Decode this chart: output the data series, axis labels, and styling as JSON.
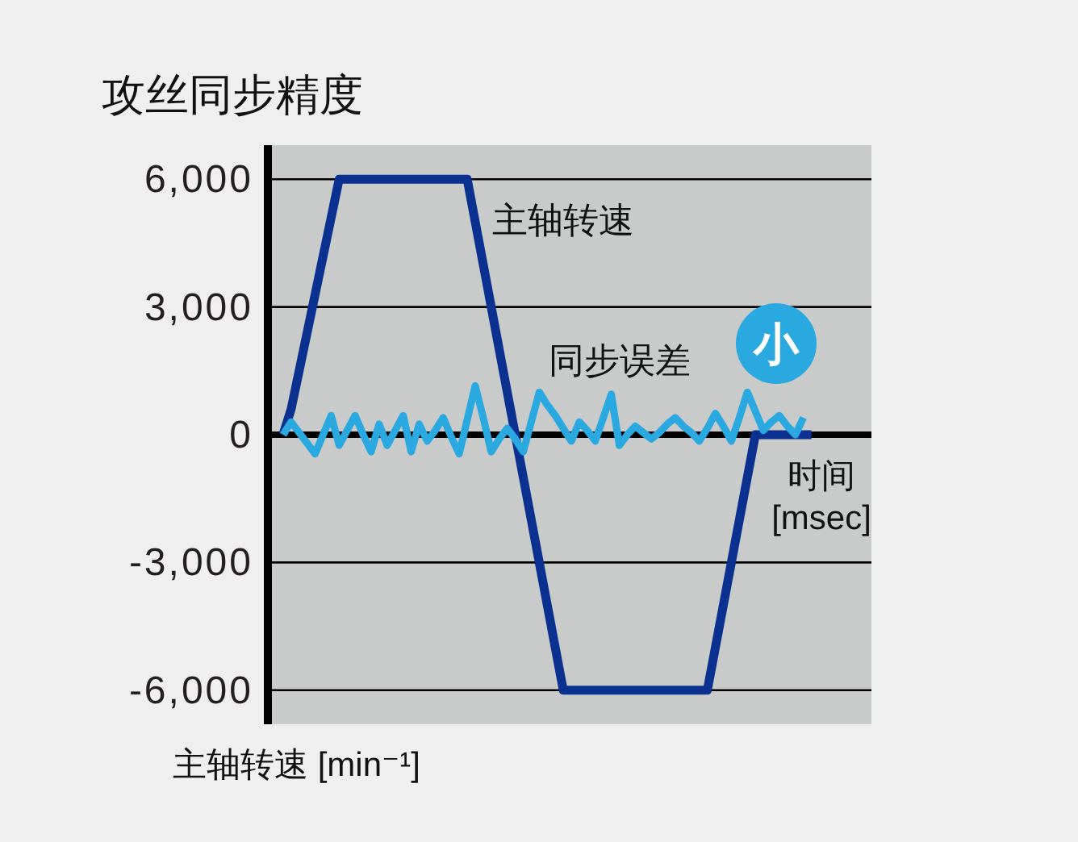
{
  "chart_data": {
    "type": "line",
    "title": "攻丝同步精度",
    "xlabel": "时间\n[msec]",
    "ylabel": "主轴转速 [min⁻¹]",
    "categories": [
      null,
      null,
      null,
      null,
      null,
      null,
      null,
      null,
      null,
      null,
      null,
      null,
      null,
      null,
      null,
      null,
      null,
      null,
      null,
      null,
      null,
      null,
      null,
      null,
      null,
      null,
      null,
      null,
      null,
      null,
      null,
      null,
      null,
      null,
      null,
      null,
      null,
      null,
      null,
      null,
      null,
      null,
      null,
      null,
      null,
      null,
      null,
      null,
      null,
      null,
      null,
      null,
      null,
      null,
      null,
      null,
      null,
      null,
      null,
      null,
      null,
      null,
      null,
      null,
      null,
      null,
      null,
      null,
      null,
      null,
      null,
      null,
      null,
      null,
      null
    ],
    "series": [
      {
        "name": "主轴转速",
        "color": "#0b3190",
        "values": [
          null,
          0,
          600,
          1500,
          2400,
          3300,
          4200,
          5100,
          6000,
          6000,
          6000,
          6000,
          6000,
          6000,
          6000,
          6000,
          6000,
          6000,
          6000,
          6000,
          6000,
          6000,
          6000,
          6000,
          6000,
          5000,
          4000,
          3000,
          2000,
          1000,
          0,
          -1000,
          -2000,
          -3000,
          -4000,
          -5000,
          -6000,
          -6000,
          -6000,
          -6000,
          -6000,
          -6000,
          -6000,
          -6000,
          -6000,
          -6000,
          -6000,
          -6000,
          -6000,
          -6000,
          -6000,
          -6000,
          -6000,
          -6000,
          -6000,
          -5000,
          -4000,
          -3000,
          -2000,
          -1000,
          0,
          0,
          0,
          0,
          0,
          0,
          0,
          0,
          null,
          null,
          null,
          null,
          null,
          null,
          null
        ]
      },
      {
        "name": "同步误差",
        "color": "#2aa8e0",
        "values": [
          null,
          0,
          300,
          50,
          -200,
          -450,
          0,
          450,
          -250,
          100,
          450,
          0,
          -400,
          250,
          -250,
          100,
          450,
          -400,
          250,
          -150,
          100,
          400,
          -50,
          -450,
          350,
          1150,
          400,
          -400,
          -100,
          150,
          -100,
          -400,
          300,
          1000,
          700,
          450,
          150,
          -150,
          300,
          100,
          -150,
          400,
          950,
          -250,
          0,
          200,
          50,
          -100,
          50,
          250,
          400,
          200,
          50,
          -150,
          150,
          500,
          200,
          -150,
          400,
          1000,
          550,
          100,
          300,
          450,
          200,
          0,
          400,
          null,
          null,
          null,
          null,
          null,
          null,
          null,
          null
        ]
      }
    ],
    "ylim": [
      -6800,
      6800
    ],
    "yticks": [
      {
        "value": 6000,
        "label": "6,000"
      },
      {
        "value": 3000,
        "label": "3,000"
      },
      0,
      {
        "value": -3000,
        "label": "-3,000"
      },
      {
        "value": -6000,
        "label": "-6,000"
      }
    ],
    "grid": "y",
    "line_style": "solid",
    "tick_labels": "y",
    "annotations": [
      "小"
    ]
  }
}
